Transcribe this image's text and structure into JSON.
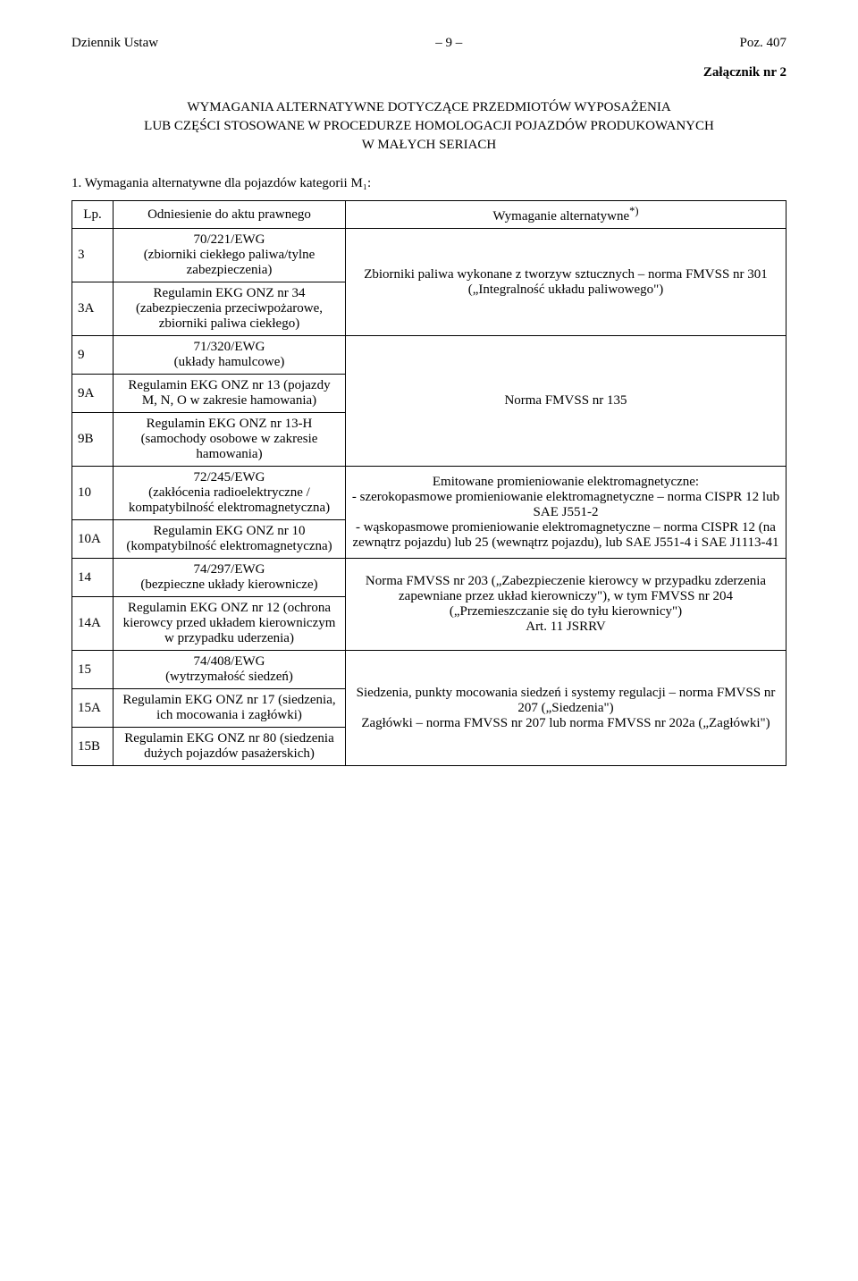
{
  "header": {
    "left": "Dziennik Ustaw",
    "center": "– 9 –",
    "right": "Poz. 407"
  },
  "attachment_label": "Załącznik nr 2",
  "title_line1": "WYMAGANIA ALTERNATYWNE DOTYCZĄCE PRZEDMIOTÓW WYPOSAŻENIA",
  "title_line2": "LUB CZĘŚCI STOSOWANE W PROCEDURZE HOMOLOGACJI POJAZDÓW PRODUKOWANYCH",
  "title_line3": "W MAŁYCH SERIACH",
  "section1_heading": "1. Wymagania alternatywne dla pojazdów kategorii M₁:",
  "table": {
    "head": {
      "lp": "Lp.",
      "ref": "Odniesienie do aktu prawnego",
      "req": "Wymaganie alternatywne",
      "req_sup": "*)"
    },
    "rows": {
      "r3": {
        "lp": "3",
        "ref": "70/221/EWG\n(zbiorniki ciekłego paliwa/tylne zabezpieczenia)"
      },
      "r3A": {
        "lp": "3A",
        "ref": "Regulamin EKG ONZ nr 34 (zabezpieczenia przeciwpożarowe, zbiorniki paliwa ciekłego)"
      },
      "req_3_3A": "Zbiorniki paliwa wykonane z tworzyw sztucznych – norma FMVSS nr 301 („Integralność układu paliwowego\")",
      "r9": {
        "lp": "9",
        "ref": "71/320/EWG\n(układy hamulcowe)"
      },
      "r9A": {
        "lp": "9A",
        "ref": "Regulamin EKG ONZ nr 13 (pojazdy M, N, O w zakresie hamowania)"
      },
      "r9B": {
        "lp": "9B",
        "ref": "Regulamin  EKG ONZ nr 13-H (samochody osobowe w zakresie hamowania)"
      },
      "req_9_9B": "Norma FMVSS nr 135",
      "r10": {
        "lp": "10",
        "ref": "72/245/EWG\n(zakłócenia radioelektryczne / kompatybilność elektromagnetyczna)"
      },
      "r10A": {
        "lp": "10A",
        "ref": "Regulamin EKG ONZ nr 10 (kompatybilność elektromagnetyczna)"
      },
      "req_10_10A_line1": "Emitowane promieniowanie elektromagnetyczne:",
      "req_10_10A_line2": "- szerokopasmowe promieniowanie elektromagnetyczne – norma CISPR 12 lub SAE J551-2",
      "req_10_10A_line3": "- wąskopasmowe promieniowanie elektromagnetyczne – norma CISPR 12 (na zewnątrz pojazdu) lub 25 (wewnątrz pojazdu), lub SAE J551-4 i SAE J1113-41",
      "r14": {
        "lp": "14",
        "ref": "74/297/EWG\n(bezpieczne układy kierownicze)"
      },
      "r14A": {
        "lp": "14A",
        "ref": "Regulamin EKG ONZ nr 12 (ochrona kierowcy przed układem kierowniczym w przypadku uderzenia)"
      },
      "req_14_14A_line1": "Norma FMVSS nr 203 („Zabezpieczenie kierowcy w przypadku zderzenia zapewniane przez układ kierowniczy\"), w tym FMVSS nr 204 („Przemieszczanie się do tyłu kierownicy\")",
      "req_14_14A_line2": "Art. 11 JSRRV",
      "r15": {
        "lp": "15",
        "ref": "74/408/EWG\n(wytrzymałość siedzeń)"
      },
      "r15A": {
        "lp": "15A",
        "ref": "Regulamin EKG ONZ nr 17 (siedzenia, ich mocowania i zagłówki)"
      },
      "r15B": {
        "lp": "15B",
        "ref": "Regulamin EKG ONZ nr 80 (siedzenia dużych pojazdów pasażerskich)"
      },
      "req_15_15B_line1": "Siedzenia, punkty mocowania siedzeń i systemy regulacji – norma FMVSS nr 207 („Siedzenia\")",
      "req_15_15B_line2": "Zagłówki – norma FMVSS nr 207 lub norma FMVSS nr 202a („Zagłówki\")"
    }
  }
}
